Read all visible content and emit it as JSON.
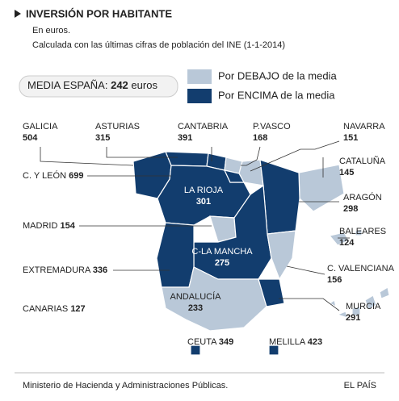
{
  "header": {
    "title": "INVERSIÓN POR HABITANTE",
    "subtitle_lines": [
      "En euros.",
      "Calculada con las últimas cifras de población del INE (1-1-2014)"
    ]
  },
  "media": {
    "label": "MEDIA ESPAÑA:",
    "value": 242,
    "unit": "euros"
  },
  "legend": [
    {
      "label": "Por DEBAJO de la media",
      "color": "#b9c8d8"
    },
    {
      "label": "Por ENCIMA de la media",
      "color": "#123d6e"
    }
  ],
  "regions": [
    {
      "name": "GALICIA",
      "value": 504,
      "color": "#123d6e"
    },
    {
      "name": "ASTURIAS",
      "value": 315,
      "color": "#123d6e"
    },
    {
      "name": "CANTABRIA",
      "value": 391,
      "color": "#123d6e"
    },
    {
      "name": "P.VASCO",
      "value": 168,
      "color": "#b9c8d8"
    },
    {
      "name": "NAVARRA",
      "value": 151,
      "color": "#b9c8d8"
    },
    {
      "name": "CATALUÑA",
      "value": 145,
      "color": "#b9c8d8"
    },
    {
      "name": "C. Y LEÓN",
      "value": 699,
      "color": "#123d6e"
    },
    {
      "name": "LA RIOJA",
      "value": 301,
      "color": "#123d6e"
    },
    {
      "name": "ARAGÓN",
      "value": 298,
      "color": "#123d6e"
    },
    {
      "name": "MADRID",
      "value": 154,
      "color": "#b9c8d8"
    },
    {
      "name": "BALEARES",
      "value": 124,
      "color": "#b9c8d8"
    },
    {
      "name": "C-LA MANCHA",
      "value": 275,
      "color": "#123d6e"
    },
    {
      "name": "EXTREMADURA",
      "value": 336,
      "color": "#123d6e"
    },
    {
      "name": "C. VALENCIANA",
      "value": 156,
      "color": "#b9c8d8"
    },
    {
      "name": "ANDALUCÍA",
      "value": 233,
      "color": "#b9c8d8"
    },
    {
      "name": "MURCIA",
      "value": 291,
      "color": "#123d6e"
    },
    {
      "name": "CANARIAS",
      "value": 127,
      "color": "#b9c8d8"
    },
    {
      "name": "CEUTA",
      "value": 349,
      "color": "#123d6e"
    },
    {
      "name": "MELILLA",
      "value": 423,
      "color": "#123d6e"
    }
  ],
  "footer": {
    "source": "Ministerio de Hacienda y Administraciones Públicas.",
    "credit": "EL PAÍS"
  }
}
